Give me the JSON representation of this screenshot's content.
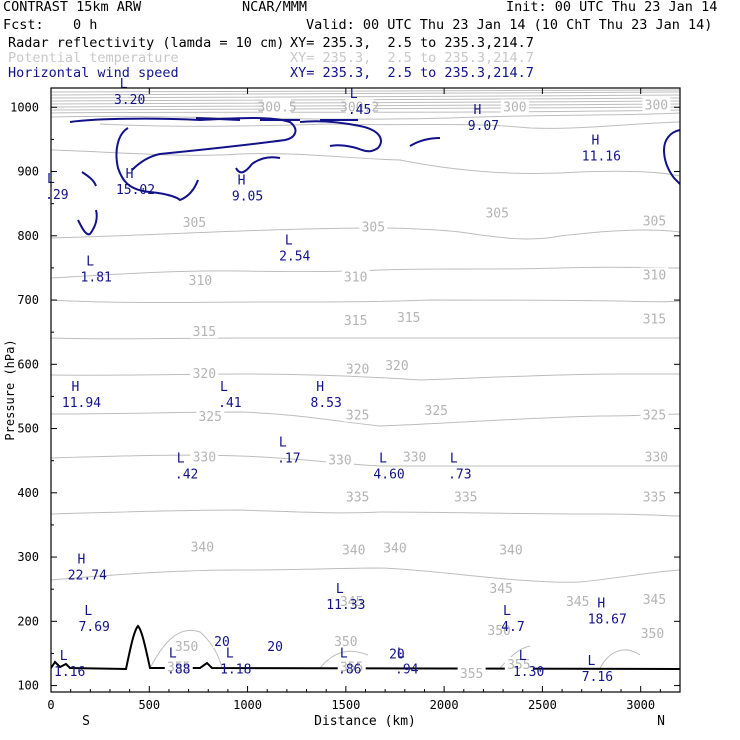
{
  "header": {
    "model": "CONTRAST 15km ARW",
    "center": "NCAR/MMM",
    "init": "Init: 00 UTC Thu 23 Jan 14",
    "fcst_label": "Fcst:",
    "fcst_value": "0 h",
    "valid": "Valid: 00 UTC Thu 23 Jan 14 (10 ChT Thu 23 Jan 14)"
  },
  "fields": [
    {
      "name": "Radar reflectivity (lamda = 10 cm)",
      "xy": "XY= 235.3,  2.5 to 235.3,214.7",
      "color": "#000000"
    },
    {
      "name": "Potential temperature",
      "xy": "XY= 235.3,  2.5 to 235.3,214.7",
      "color": "#c8c8c8"
    },
    {
      "name": "Horizontal wind speed",
      "xy": "XY= 235.3,  2.5 to 235.3,214.7",
      "color": "#12128a"
    }
  ],
  "chart_data": {
    "type": "contour-cross-section",
    "xlabel": "Distance (km)",
    "ylabel": "Pressure (hPa)",
    "xlim": [
      0,
      3200
    ],
    "ylim": [
      1030,
      90
    ],
    "xticks": [
      "0",
      "500",
      "1000",
      "1500",
      "2000",
      "2500",
      "3000"
    ],
    "xtick_values": [
      0,
      500,
      1000,
      1500,
      2000,
      2500,
      3000
    ],
    "yticks": [
      "100",
      "200",
      "300",
      "400",
      "500",
      "600",
      "700",
      "800",
      "900",
      "1000"
    ],
    "ytick_values": [
      100,
      200,
      300,
      400,
      500,
      600,
      700,
      800,
      900,
      1000
    ],
    "direction_start": "S",
    "direction_end": "N",
    "theta_labels": [
      {
        "text": "355",
        "x": 650,
        "p": 128
      },
      {
        "text": "355",
        "x": 1530,
        "p": 128
      },
      {
        "text": "355",
        "x": 2140,
        "p": 118
      },
      {
        "text": "355",
        "x": 2380,
        "p": 132
      },
      {
        "text": "350",
        "x": 690,
        "p": 160
      },
      {
        "text": "350",
        "x": 1500,
        "p": 168
      },
      {
        "text": "350",
        "x": 2280,
        "p": 185
      },
      {
        "text": "350",
        "x": 3060,
        "p": 180
      },
      {
        "text": "345",
        "x": 1530,
        "p": 230
      },
      {
        "text": "345",
        "x": 2290,
        "p": 250
      },
      {
        "text": "345",
        "x": 2680,
        "p": 230
      },
      {
        "text": "345",
        "x": 3070,
        "p": 233
      },
      {
        "text": "340",
        "x": 770,
        "p": 315
      },
      {
        "text": "340",
        "x": 1540,
        "p": 310
      },
      {
        "text": "340",
        "x": 1750,
        "p": 313
      },
      {
        "text": "340",
        "x": 2340,
        "p": 310
      },
      {
        "text": "335",
        "x": 1560,
        "p": 393
      },
      {
        "text": "335",
        "x": 2110,
        "p": 393
      },
      {
        "text": "335",
        "x": 3070,
        "p": 393
      },
      {
        "text": "330",
        "x": 780,
        "p": 455
      },
      {
        "text": "330",
        "x": 1470,
        "p": 450
      },
      {
        "text": "330",
        "x": 1850,
        "p": 455
      },
      {
        "text": "330",
        "x": 3080,
        "p": 455
      },
      {
        "text": "325",
        "x": 810,
        "p": 518
      },
      {
        "text": "325",
        "x": 1560,
        "p": 520
      },
      {
        "text": "325",
        "x": 1960,
        "p": 527
      },
      {
        "text": "325",
        "x": 3070,
        "p": 520
      },
      {
        "text": "320",
        "x": 780,
        "p": 585
      },
      {
        "text": "320",
        "x": 1560,
        "p": 592
      },
      {
        "text": "320",
        "x": 1760,
        "p": 597
      },
      {
        "text": "315",
        "x": 780,
        "p": 650
      },
      {
        "text": "315",
        "x": 1550,
        "p": 667
      },
      {
        "text": "315",
        "x": 1820,
        "p": 672
      },
      {
        "text": "315",
        "x": 3070,
        "p": 670
      },
      {
        "text": "310",
        "x": 760,
        "p": 730
      },
      {
        "text": "310",
        "x": 1550,
        "p": 735
      },
      {
        "text": "310",
        "x": 3070,
        "p": 738
      },
      {
        "text": "305",
        "x": 730,
        "p": 820
      },
      {
        "text": "305",
        "x": 1640,
        "p": 813
      },
      {
        "text": "305",
        "x": 2270,
        "p": 835
      },
      {
        "text": "305",
        "x": 3070,
        "p": 822
      },
      {
        "text": "300.5",
        "x": 1150,
        "p": 1000
      },
      {
        "text": "300.2",
        "x": 1570,
        "p": 1000
      },
      {
        "text": "300",
        "x": 2360,
        "p": 1000
      },
      {
        "text": "300",
        "x": 3080,
        "p": 1003
      }
    ],
    "extrema": [
      {
        "type": "L",
        "value": "1.16",
        "x": 95,
        "p": 118,
        "color": "#12128a"
      },
      {
        "type": "L",
        "value": ".88",
        "x": 650,
        "p": 122,
        "color": "#12128a"
      },
      {
        "type": "L",
        "value": "1.18",
        "x": 940,
        "p": 122,
        "color": "#12128a"
      },
      {
        "type": "L",
        "value": ".86",
        "x": 1520,
        "p": 122,
        "color": "#12128a"
      },
      {
        "type": "L",
        "value": ".94",
        "x": 1810,
        "p": 122,
        "color": "#12128a"
      },
      {
        "type": "L",
        "value": "1.30",
        "x": 2430,
        "p": 118,
        "color": "#12128a"
      },
      {
        "type": "L",
        "value": "7.16",
        "x": 2780,
        "p": 110,
        "color": "#12128a"
      },
      {
        "type": "L",
        "value": "7.69",
        "x": 220,
        "p": 188,
        "color": "#12128a"
      },
      {
        "type": "L",
        "value": "11.33",
        "x": 1500,
        "p": 222,
        "color": "#12128a"
      },
      {
        "type": "L",
        "value": "4.7",
        "x": 2350,
        "p": 188,
        "color": "#12128a"
      },
      {
        "type": "H",
        "value": "18.67",
        "x": 2830,
        "p": 200,
        "color": "#12128a"
      },
      {
        "type": "H",
        "value": "22.74",
        "x": 185,
        "p": 268,
        "color": "#12128a"
      },
      {
        "type": "L",
        "value": ".42",
        "x": 690,
        "p": 425,
        "color": "#12128a"
      },
      {
        "type": "L",
        "value": ".17",
        "x": 1210,
        "p": 450,
        "color": "#12128a"
      },
      {
        "type": "L",
        "value": "4.60",
        "x": 1720,
        "p": 425,
        "color": "#12128a"
      },
      {
        "type": "L",
        "value": ".73",
        "x": 2080,
        "p": 425,
        "color": "#12128a"
      },
      {
        "type": "H",
        "value": "11.94",
        "x": 155,
        "p": 537,
        "color": "#12128a"
      },
      {
        "type": "L",
        "value": ".41",
        "x": 910,
        "p": 537,
        "color": "#12128a"
      },
      {
        "type": "H",
        "value": "8.53",
        "x": 1400,
        "p": 537,
        "color": "#12128a"
      },
      {
        "type": "L",
        "value": "1.81",
        "x": 230,
        "p": 732,
        "color": "#12128a"
      },
      {
        "type": "L",
        "value": "2.54",
        "x": 1240,
        "p": 765,
        "color": "#12128a"
      },
      {
        "type": "L",
        "value": ".29",
        "x": 30,
        "p": 860,
        "color": "#12128a"
      },
      {
        "type": "H",
        "value": "15.02",
        "x": 430,
        "p": 868,
        "color": "#12128a"
      },
      {
        "type": "H",
        "value": "9.05",
        "x": 1000,
        "p": 858,
        "color": "#12128a"
      },
      {
        "type": "H",
        "value": "11.16",
        "x": 2800,
        "p": 920,
        "color": "#12128a"
      },
      {
        "type": "H",
        "value": "9.07",
        "x": 2200,
        "p": 968,
        "color": "#12128a"
      },
      {
        "type": "L",
        "value": "3.20",
        "x": 400,
        "p": 1008,
        "color": "#12128a"
      },
      {
        "type": "L",
        "value": ".45",
        "x": 1570,
        "p": 993,
        "color": "#12128a"
      }
    ],
    "wind_contour_labels": [
      {
        "text": "20",
        "x": 870,
        "p": 168
      },
      {
        "text": "20",
        "x": 1140,
        "p": 160
      },
      {
        "text": "20",
        "x": 1760,
        "p": 148
      }
    ]
  }
}
